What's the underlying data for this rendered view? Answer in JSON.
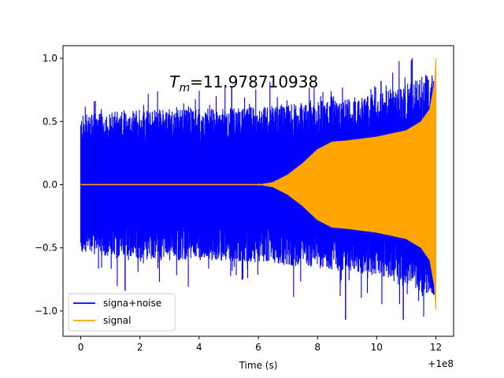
{
  "chart_data": {
    "type": "line",
    "title": "",
    "xlabel": "Time (s)",
    "ylabel": "",
    "x_offset_label": "+1e8",
    "xlim": [
      -0.6,
      12.6
    ],
    "ylim": [
      -1.2,
      1.1
    ],
    "xticks": [
      0,
      2,
      4,
      6,
      8,
      10,
      12
    ],
    "xtick_labels": [
      "0",
      "2",
      "4",
      "6",
      "8",
      "10",
      "12"
    ],
    "yticks": [
      1.0,
      0.5,
      0.0,
      -0.5,
      -1.0
    ],
    "ytick_labels": [
      "1.0",
      "0.5",
      "0.0",
      "−0.5",
      "−1.0"
    ],
    "annotation": {
      "symbol": "T",
      "subscript": "m",
      "value_text": "=11.978710938",
      "x": 3.0,
      "y": 0.77
    },
    "series": [
      {
        "name": "signa+noise",
        "color": "#0000ff",
        "x_range": [
          0,
          12
        ],
        "noise_band_upper": [
          [
            0,
            0.55
          ],
          [
            2,
            0.6
          ],
          [
            4,
            0.6
          ],
          [
            6,
            0.62
          ],
          [
            8,
            0.66
          ],
          [
            10,
            0.72
          ],
          [
            11,
            0.8
          ],
          [
            11.9,
            0.9
          ]
        ],
        "noise_band_lower": [
          [
            0,
            -0.55
          ],
          [
            2,
            -0.6
          ],
          [
            4,
            -0.6
          ],
          [
            6,
            -0.62
          ],
          [
            8,
            -0.66
          ],
          [
            10,
            -0.72
          ],
          [
            11,
            -0.8
          ],
          [
            11.9,
            -0.9
          ]
        ],
        "peak_max": 1.0,
        "peak_min": -1.08
      },
      {
        "name": "signal",
        "color": "#ffa500",
        "x_range": [
          0,
          12
        ],
        "amplitude_envelope": [
          [
            0,
            0.0
          ],
          [
            6,
            0.0
          ],
          [
            6.5,
            0.02
          ],
          [
            7,
            0.08
          ],
          [
            7.5,
            0.17
          ],
          [
            8,
            0.28
          ],
          [
            8.5,
            0.34
          ],
          [
            9,
            0.35
          ],
          [
            10,
            0.38
          ],
          [
            11,
            0.43
          ],
          [
            11.5,
            0.5
          ],
          [
            11.8,
            0.6
          ],
          [
            11.95,
            0.8
          ],
          [
            12.0,
            1.0
          ]
        ],
        "final_peak": 1.0,
        "final_trough": -0.99
      }
    ],
    "legend": {
      "position": "lower-left",
      "entries": [
        "signa+noise",
        "signal"
      ]
    }
  }
}
